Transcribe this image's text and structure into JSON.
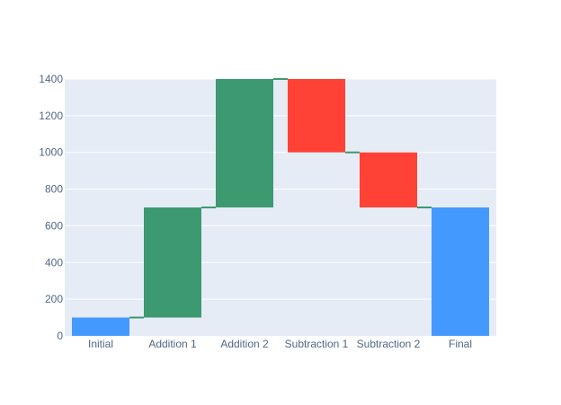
{
  "chart_data": {
    "type": "waterfall",
    "categories": [
      "Initial",
      "Addition 1",
      "Addition 2",
      "Subtraction 1",
      "Subtraction 2",
      "Final"
    ],
    "measures": [
      "total",
      "relative",
      "relative",
      "relative",
      "relative",
      "total"
    ],
    "values": [
      100,
      600,
      700,
      -400,
      -300,
      700
    ],
    "ylim": [
      0,
      1400
    ],
    "y_ticks": [
      0,
      200,
      400,
      600,
      800,
      1000,
      1200,
      1400
    ],
    "grid": true,
    "legend": "none",
    "colors": {
      "total": "#4499ff",
      "increase": "#3d9970",
      "decrease": "#ff4136",
      "connector": "#3d9970",
      "plot_bg": "#e5ecf6",
      "grid": "#ffffff",
      "tick_text": "#506784"
    }
  }
}
